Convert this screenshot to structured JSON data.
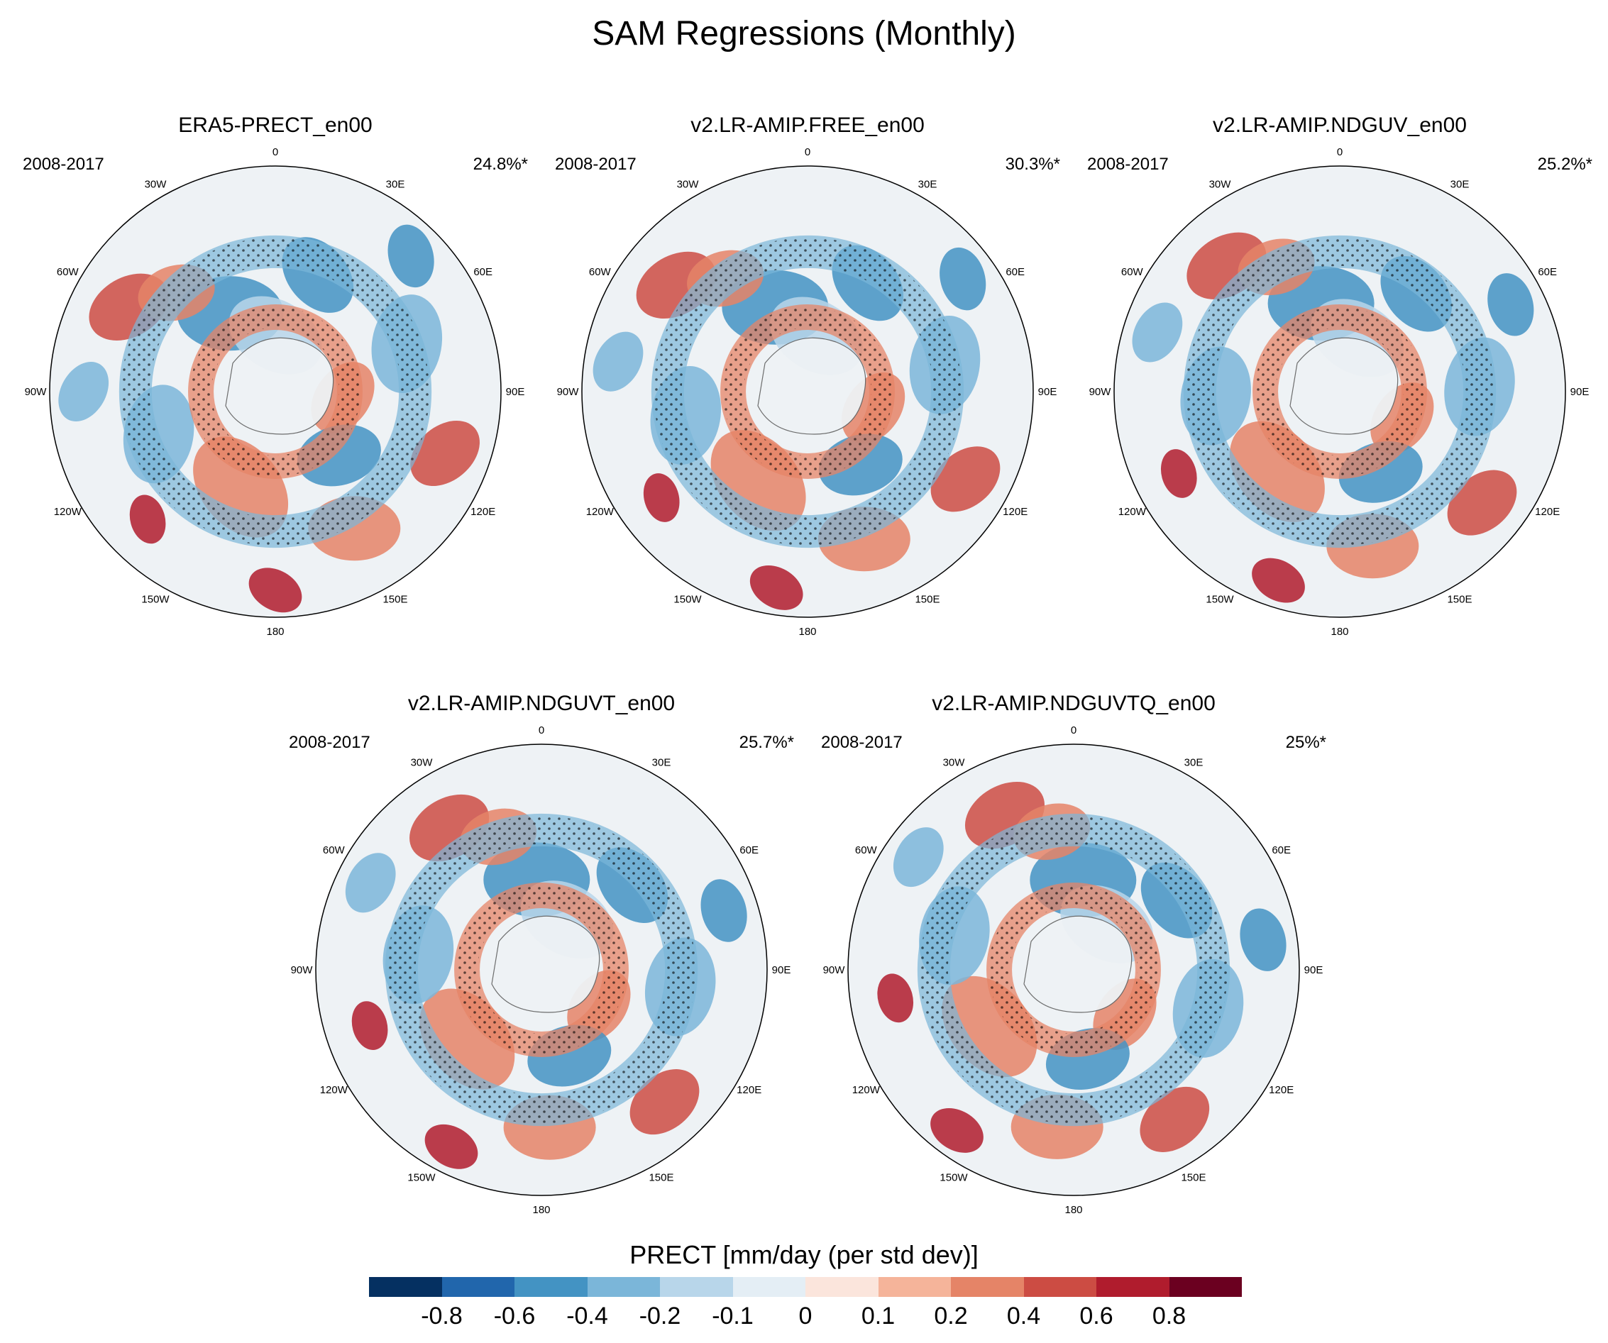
{
  "figure": {
    "title": "SAM Regressions (Monthly)"
  },
  "panels": [
    {
      "title": "ERA5-PRECT_en00",
      "period": "2008-2017",
      "percent": "24.8%*"
    },
    {
      "title": "v2.LR-AMIP.FREE_en00",
      "period": "2008-2017",
      "percent": "30.3%*"
    },
    {
      "title": "v2.LR-AMIP.NDGUV_en00",
      "period": "2008-2017",
      "percent": "25.2%*"
    },
    {
      "title": "v2.LR-AMIP.NDGUVT_en00",
      "period": "2008-2017",
      "percent": "25.7%*"
    },
    {
      "title": "v2.LR-AMIP.NDGUVTQ_en00",
      "period": "2008-2017",
      "percent": "25%*"
    }
  ],
  "longitude_labels": [
    "0",
    "30E",
    "60E",
    "90E",
    "120E",
    "150E",
    "180",
    "150W",
    "120W",
    "90W",
    "60W",
    "30W"
  ],
  "colorbar": {
    "title": "PRECT [mm/day (per std dev)]",
    "ticks": [
      "-0.8",
      "-0.6",
      "-0.4",
      "-0.2",
      "-0.1",
      "0",
      "0.1",
      "0.2",
      "0.4",
      "0.6",
      "0.8"
    ],
    "colors": [
      "#053061",
      "#2166ac",
      "#4393c3",
      "#7bb6d9",
      "#b8d6ea",
      "#e4eef5",
      "#fbe5dc",
      "#f5b49a",
      "#e58467",
      "#cc4c43",
      "#b01c2d",
      "#6b0020"
    ]
  }
}
